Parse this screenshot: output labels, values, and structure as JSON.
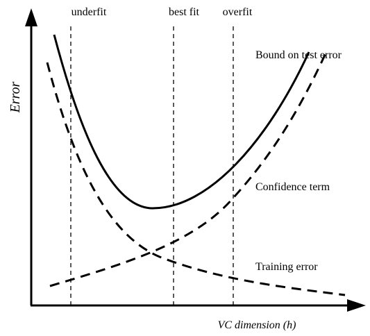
{
  "axes": {
    "y_label": "Error",
    "x_label": "VC dimension (h)"
  },
  "regions": [
    "underfit",
    "best fit",
    "overfit"
  ],
  "curves": {
    "bound": "Bound on test error",
    "confidence": "Confidence term",
    "training": "Training error"
  }
}
